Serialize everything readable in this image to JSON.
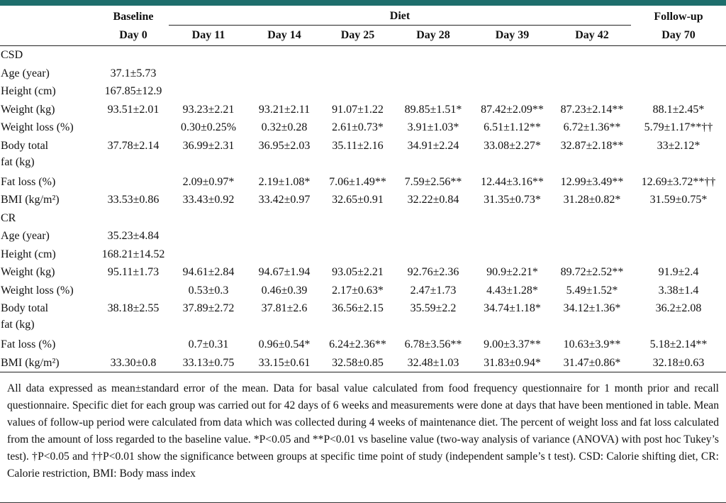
{
  "header": {
    "baseline": "Baseline",
    "baseline_day": "Day 0",
    "diet": "Diet",
    "days": [
      "Day 11",
      "Day 14",
      "Day 25",
      "Day 28",
      "Day 39",
      "Day 42"
    ],
    "followup": "Follow-up",
    "followup_day": "Day 70"
  },
  "groups": [
    {
      "name": "CSD",
      "rows": [
        {
          "label": "Age (year)",
          "cells": [
            "37.1±5.73",
            null,
            null,
            null,
            null,
            null,
            null,
            null
          ]
        },
        {
          "label": "Height (cm)",
          "cells": [
            "167.85±12.9",
            null,
            null,
            null,
            null,
            null,
            null,
            null
          ]
        },
        {
          "label": "Weight (kg)",
          "cells": [
            "93.51±2.01",
            "93.23±2.21",
            "93.21±2.11",
            "91.07±1.22",
            "89.85±1.51*",
            "87.42±2.09**",
            "87.23±2.14**",
            "88.1±2.45*"
          ]
        },
        {
          "label": "Weight loss (%)",
          "cells": [
            null,
            "0.30±0.25%",
            "0.32±0.28",
            "2.61±0.73*",
            "3.91±1.03*",
            "6.51±1.12**",
            "6.72±1.36**",
            "5.79±1.17**††"
          ]
        },
        {
          "label": "Body total fat (kg)",
          "cells": [
            "37.78±2.14",
            "36.99±2.31",
            "36.95±2.03",
            "35.11±2.16",
            "34.91±2.24",
            "33.08±2.27*",
            "32.87±2.18**",
            "33±2.12*"
          ]
        },
        {
          "label": "Fat loss (%)",
          "cells": [
            null,
            "2.09±0.97*",
            "2.19±1.08*",
            "7.06±1.49**",
            "7.59±2.56**",
            "12.44±3.16**",
            "12.99±3.49**",
            "12.69±3.72**††"
          ]
        },
        {
          "label": "BMI (kg/m²)",
          "cells": [
            "33.53±0.86",
            "33.43±0.92",
            "33.42±0.97",
            "32.65±0.91",
            "32.22±0.84",
            "31.35±0.73*",
            "31.28±0.82*",
            "31.59±0.75*"
          ]
        }
      ]
    },
    {
      "name": "CR",
      "rows": [
        {
          "label": "Age (year)",
          "cells": [
            "35.23±4.84",
            null,
            null,
            null,
            null,
            null,
            null,
            null
          ]
        },
        {
          "label": "Height (cm)",
          "cells": [
            "168.21±14.52",
            null,
            null,
            null,
            null,
            null,
            null,
            null
          ]
        },
        {
          "label": "Weight (kg)",
          "cells": [
            "95.11±1.73",
            "94.61±2.84",
            "94.67±1.94",
            "93.05±2.21",
            "92.76±2.36",
            "90.9±2.21*",
            "89.72±2.52**",
            "91.9±2.4"
          ]
        },
        {
          "label": "Weight loss (%)",
          "cells": [
            null,
            "0.53±0.3",
            "0.46±0.39",
            "2.17±0.63*",
            "2.47±1.73",
            "4.43±1.28*",
            "5.49±1.52*",
            "3.38±1.4"
          ]
        },
        {
          "label": "Body total fat (kg)",
          "cells": [
            "38.18±2.55",
            "37.89±2.72",
            "37.81±2.6",
            "36.56±2.15",
            "35.59±2.2",
            "34.74±1.18*",
            "34.12±1.36*",
            "36.2±2.08"
          ]
        },
        {
          "label": "Fat loss (%)",
          "cells": [
            null,
            "0.7±0.31",
            "0.96±0.54*",
            "6.24±2.36**",
            "6.78±3.56**",
            "9.00±3.37**",
            "10.63±3.9**",
            "5.18±2.14**"
          ]
        },
        {
          "label": "BMI (kg/m²)",
          "cells": [
            "33.30±0.8",
            "33.13±0.75",
            "33.15±0.61",
            "32.58±0.85",
            "32.48±1.03",
            "31.83±0.94*",
            "31.47±0.86*",
            "32.18±0.63"
          ]
        }
      ]
    }
  ],
  "footnote": "All data expressed as mean±standard error of the mean. Data for basal value calculated from food frequency questionnaire for 1 month prior and recall questionnaire. Specific diet for each group was carried out for 42 days of 6 weeks and measurements were done at days that have been mentioned in table. Mean values of follow-up period were calculated from data which was collected during 4 weeks of maintenance diet. The percent of weight loss and fat loss calculated from the amount of loss regarded to the baseline value. *P<0.05 and **P<0.01 vs baseline value (two-way analysis of variance (ANOVA) with post hoc Tukey’s test). †P<0.05 and ††P<0.01 show the significance between groups at specific time point of study (independent sample’s t test). CSD: Calorie shifting diet, CR: Calorie restriction, BMI: Body mass index"
}
